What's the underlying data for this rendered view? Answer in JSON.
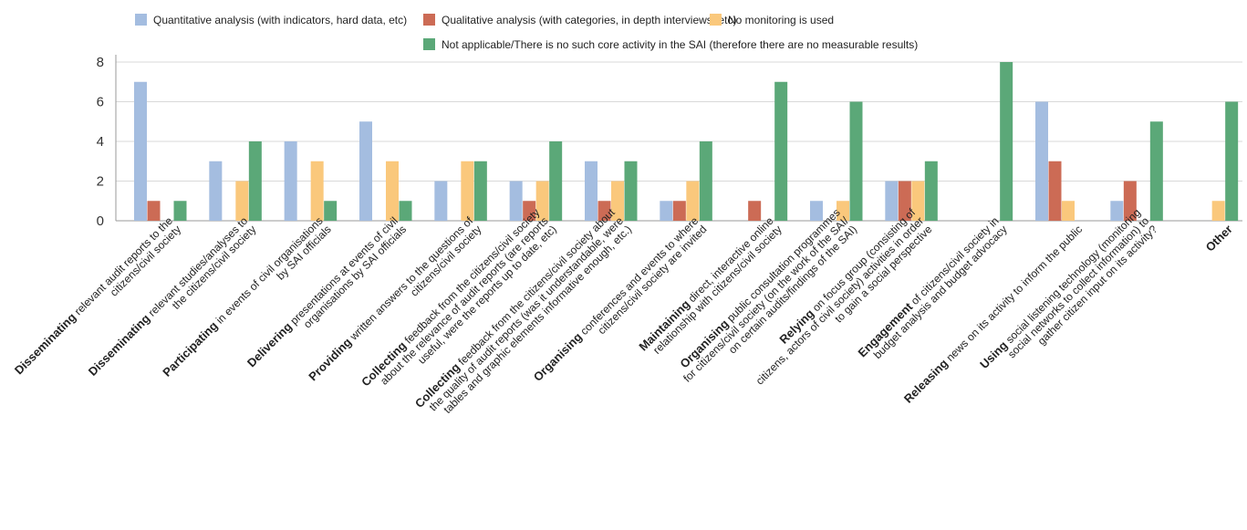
{
  "chart_data": {
    "type": "bar",
    "ylim": [
      0,
      8
    ],
    "yticks": [
      0,
      2,
      4,
      6,
      8
    ],
    "grid": true,
    "legend_position": "top",
    "categories": [
      {
        "bold": "Disseminating",
        "lines": [
          "Disseminating relevant audit reports to the",
          "citizens/civil society"
        ]
      },
      {
        "bold": "Disseminating",
        "lines": [
          "Disseminating relevant studies/analyses to",
          "the citizens/civil society"
        ]
      },
      {
        "bold": "Participating",
        "lines": [
          "Participating in events of civil organisations",
          "by SAI officials"
        ]
      },
      {
        "bold": "Delivering",
        "lines": [
          "Delivering presentations at events of civil",
          "organisations by SAI officials"
        ]
      },
      {
        "bold": "Providing",
        "lines": [
          "Providing written answers to the questions of",
          "citizens/civil society"
        ]
      },
      {
        "bold": "Collecting",
        "lines": [
          "Collecting feedback from the citizens/civil society",
          "about the relevance of audit reports (are reports",
          "useful, were the reports up to date, etc)"
        ]
      },
      {
        "bold": "Collecting",
        "lines": [
          "Collecting feedback from the citizens/civil society about",
          "the quality of audit reports (was it understandable, were",
          "tables and graphic elements informative enough, etc.)"
        ]
      },
      {
        "bold": "Organising",
        "lines": [
          "Organising conferences and events to where",
          "citizens/civil society are invited"
        ]
      },
      {
        "bold": "Maintaining",
        "lines": [
          "Maintaining direct, interactive online",
          "relationship with citizens/civil society"
        ]
      },
      {
        "bold": "Organising",
        "lines": [
          "Organising public consultation programmes",
          "for citizens/civil society (on the work of the SAI/",
          "on certain audits/findings of the SAI)"
        ]
      },
      {
        "bold": "Relying",
        "lines": [
          "Relying on focus group (consisting of",
          "citizens, actors of civil society) activities in order",
          "to gain a social perspective"
        ]
      },
      {
        "bold": "Engagement",
        "lines": [
          "Engagement of citizens/civil society in",
          "budget analysis and budget advocacy"
        ]
      },
      {
        "bold": "Releasing",
        "lines": [
          "Releasing news on its activity to inform the public"
        ]
      },
      {
        "bold": "Using",
        "lines": [
          "Using social listening technology (monitoring",
          "social networks to collect information) to",
          "gather citizen input on its activity?"
        ]
      },
      {
        "bold": "Other",
        "lines": [
          "Other"
        ]
      }
    ],
    "series": [
      {
        "name": "Quantitative analysis (with indicators, hard data, etc)",
        "color": "#a4bde0",
        "values": [
          7,
          3,
          4,
          5,
          2,
          2,
          3,
          1,
          0,
          1,
          2,
          0,
          6,
          1,
          0
        ]
      },
      {
        "name": "Qualitative analysis (with categories, in depth interviews, etc)",
        "color": "#cc6b55",
        "values": [
          1,
          0,
          0,
          0,
          0,
          1,
          1,
          1,
          1,
          0,
          2,
          0,
          3,
          2,
          0
        ]
      },
      {
        "name": "No monitoring is used",
        "color": "#fac87c",
        "values": [
          0,
          2,
          3,
          3,
          3,
          2,
          2,
          2,
          0,
          1,
          2,
          0,
          1,
          0,
          1
        ]
      },
      {
        "name": "Not applicable/There is no such core activity in the SAI (therefore there are no measurable results)",
        "color": "#5ba878",
        "values": [
          1,
          4,
          1,
          1,
          3,
          4,
          3,
          4,
          7,
          6,
          3,
          8,
          0,
          5,
          6
        ]
      }
    ]
  }
}
